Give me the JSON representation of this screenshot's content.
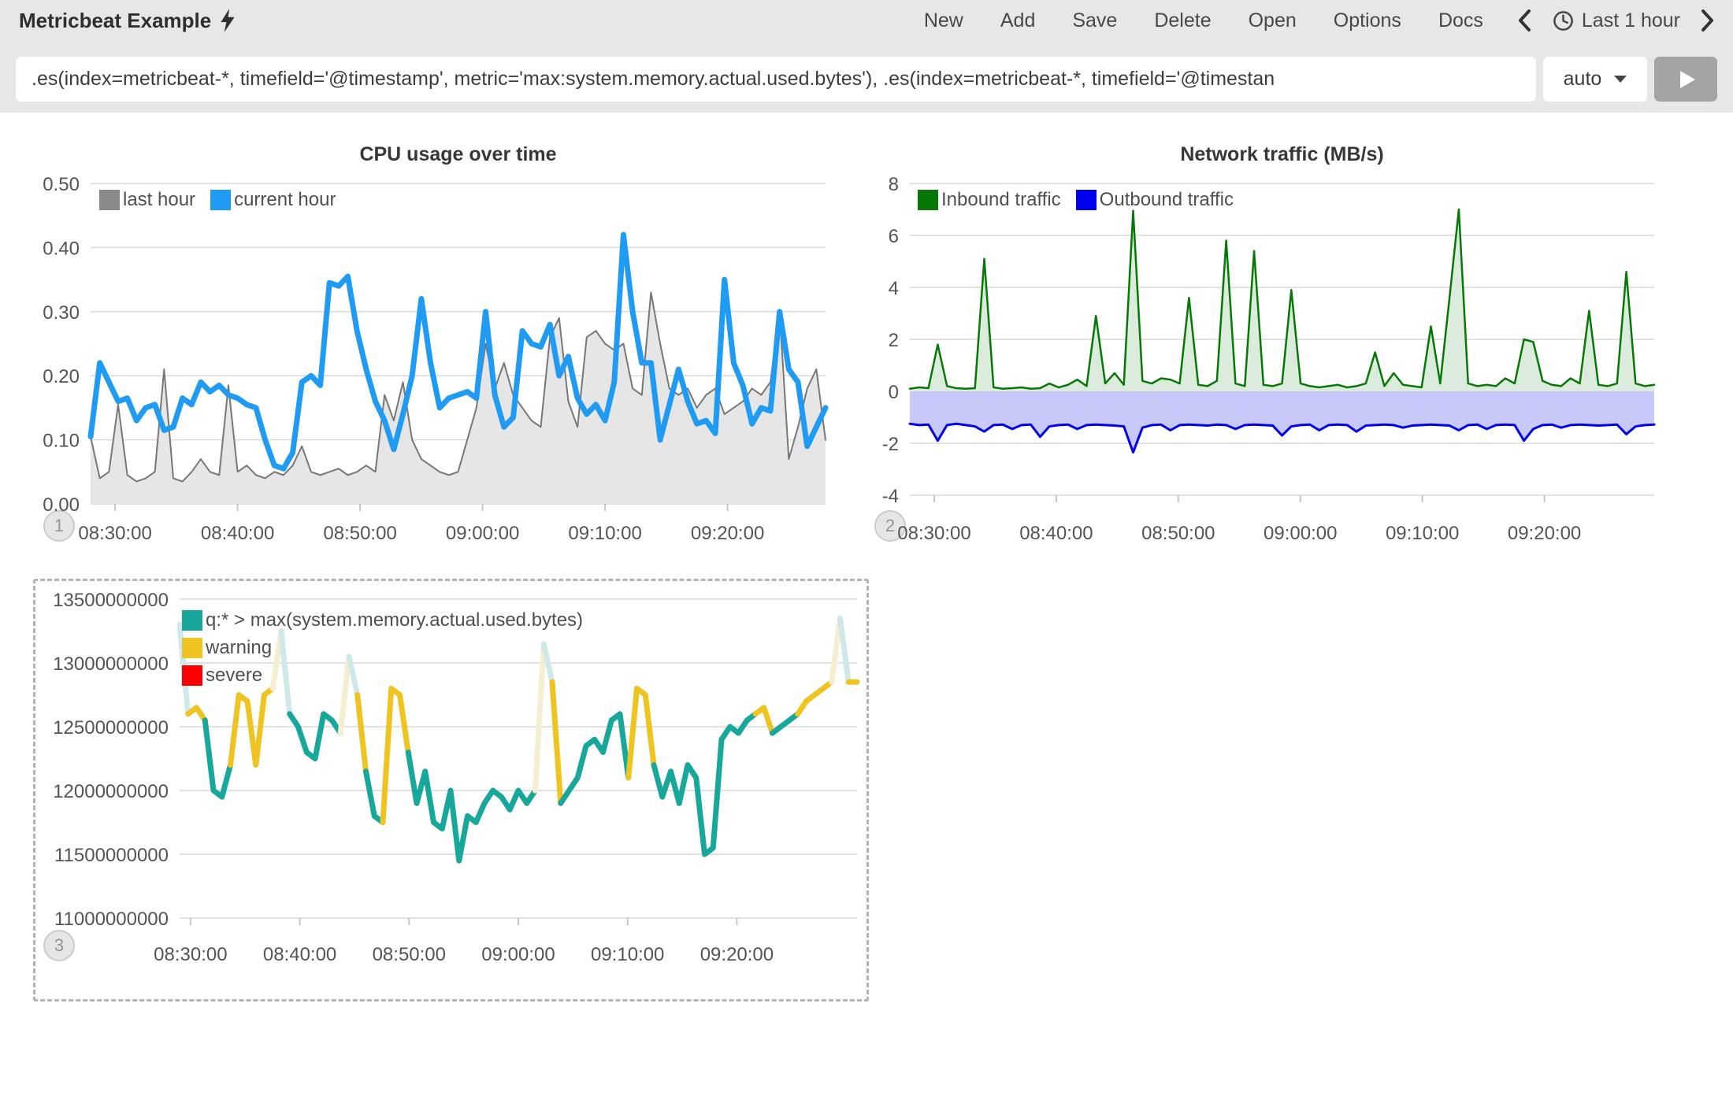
{
  "app": {
    "title": "Metricbeat Example",
    "title_icon": "lightning-bolt-icon"
  },
  "toolbar": {
    "items": [
      "New",
      "Add",
      "Save",
      "Delete",
      "Open",
      "Options",
      "Docs"
    ],
    "time_label": "Last 1 hour"
  },
  "query": {
    "value": ".es(index=metricbeat-*, timefield='@timestamp', metric='max:system.memory.actual.used.bytes'), .es(index=metricbeat-*, timefield='@timestan",
    "interval_value": "auto"
  },
  "colors": {
    "header_bg": "#e7e7e7",
    "cpu_last_hour": "#8a8a8a",
    "cpu_current_hour": "#1f9bf4",
    "net_inbound": "#077807",
    "net_outbound": "#0000ee",
    "memory_line": "#17a79b",
    "memory_warning": "#f0c420",
    "memory_severe": "#ff0000"
  },
  "time_axis_note": "t = minutes since 08:28:00",
  "chart_data": [
    {
      "id": "cpu-usage",
      "type": "line",
      "title": "CPU usage over time",
      "panel_badge": "1",
      "legend": [
        {
          "label": "last hour",
          "color": "#8a8a8a"
        },
        {
          "label": "current hour",
          "color": "#1f9bf4"
        }
      ],
      "xlim_minutes": [
        0,
        60
      ],
      "ylim": [
        0,
        0.5
      ],
      "y_ticks": [
        {
          "v": 0.5,
          "label": "0.50"
        },
        {
          "v": 0.4,
          "label": "0.40"
        },
        {
          "v": 0.3,
          "label": "0.30"
        },
        {
          "v": 0.2,
          "label": "0.20"
        },
        {
          "v": 0.1,
          "label": "0.10"
        },
        {
          "v": 0.0,
          "label": "0.00"
        }
      ],
      "x_ticks": [
        {
          "t": 2,
          "label": "08:30:00"
        },
        {
          "t": 12,
          "label": "08:40:00"
        },
        {
          "t": 22,
          "label": "08:50:00"
        },
        {
          "t": 32,
          "label": "09:00:00"
        },
        {
          "t": 42,
          "label": "09:10:00"
        },
        {
          "t": 52,
          "label": "09:20:00"
        }
      ],
      "series": [
        {
          "name": "last hour",
          "color": "#777777",
          "width": 2,
          "fill": "#e6e6e6",
          "t_start": 0,
          "t_step": 0.75,
          "values": [
            0.105,
            0.04,
            0.05,
            0.155,
            0.045,
            0.035,
            0.04,
            0.05,
            0.21,
            0.04,
            0.035,
            0.05,
            0.07,
            0.05,
            0.045,
            0.185,
            0.05,
            0.06,
            0.045,
            0.04,
            0.05,
            0.045,
            0.06,
            0.09,
            0.05,
            0.045,
            0.05,
            0.055,
            0.045,
            0.05,
            0.06,
            0.05,
            0.17,
            0.13,
            0.19,
            0.1,
            0.07,
            0.06,
            0.05,
            0.045,
            0.05,
            0.1,
            0.15,
            0.25,
            0.18,
            0.22,
            0.17,
            0.15,
            0.13,
            0.12,
            0.26,
            0.29,
            0.16,
            0.12,
            0.26,
            0.27,
            0.25,
            0.24,
            0.25,
            0.18,
            0.17,
            0.33,
            0.25,
            0.18,
            0.17,
            0.18,
            0.15,
            0.17,
            0.18,
            0.14,
            0.15,
            0.16,
            0.18,
            0.17,
            0.19,
            0.3,
            0.07,
            0.12,
            0.18,
            0.21,
            0.1
          ]
        },
        {
          "name": "current hour",
          "color": "#1f9bf4",
          "width": 7,
          "t_start": 0,
          "t_step": 0.75,
          "values": [
            0.105,
            0.22,
            0.19,
            0.16,
            0.165,
            0.13,
            0.15,
            0.155,
            0.115,
            0.12,
            0.165,
            0.155,
            0.19,
            0.175,
            0.185,
            0.17,
            0.165,
            0.155,
            0.15,
            0.1,
            0.06,
            0.055,
            0.08,
            0.19,
            0.2,
            0.185,
            0.345,
            0.34,
            0.355,
            0.27,
            0.21,
            0.16,
            0.13,
            0.085,
            0.14,
            0.2,
            0.32,
            0.22,
            0.15,
            0.165,
            0.17,
            0.175,
            0.165,
            0.3,
            0.17,
            0.12,
            0.135,
            0.27,
            0.25,
            0.245,
            0.28,
            0.2,
            0.23,
            0.165,
            0.14,
            0.155,
            0.13,
            0.19,
            0.42,
            0.3,
            0.22,
            0.22,
            0.1,
            0.155,
            0.21,
            0.16,
            0.125,
            0.13,
            0.11,
            0.35,
            0.22,
            0.185,
            0.125,
            0.15,
            0.145,
            0.3,
            0.21,
            0.19,
            0.09,
            0.12,
            0.15
          ]
        }
      ]
    },
    {
      "id": "network-traffic",
      "type": "area",
      "title": "Network traffic (MB/s)",
      "panel_badge": "2",
      "legend": [
        {
          "label": "Inbound traffic",
          "color": "#077807"
        },
        {
          "label": "Outbound traffic",
          "color": "#0000ee"
        }
      ],
      "xlim_minutes": [
        0,
        61
      ],
      "ylim": [
        -4,
        8
      ],
      "y_ticks": [
        {
          "v": 8,
          "label": "8"
        },
        {
          "v": 6,
          "label": "6"
        },
        {
          "v": 4,
          "label": "4"
        },
        {
          "v": 2,
          "label": "2"
        },
        {
          "v": 0,
          "label": "0"
        },
        {
          "v": -2,
          "label": "-2"
        },
        {
          "v": -4,
          "label": "-4"
        }
      ],
      "x_ticks": [
        {
          "t": 2,
          "label": "08:30:00"
        },
        {
          "t": 12,
          "label": "08:40:00"
        },
        {
          "t": 22,
          "label": "08:50:00"
        },
        {
          "t": 32,
          "label": "09:00:00"
        },
        {
          "t": 42,
          "label": "09:10:00"
        },
        {
          "t": 52,
          "label": "09:20:00"
        }
      ],
      "series": [
        {
          "name": "Inbound traffic",
          "color": "#077807",
          "width": 2.5,
          "fill": "#dcecdc",
          "t_start": 0,
          "t_step": 0.7625,
          "values": [
            0.1,
            0.15,
            0.12,
            1.8,
            0.2,
            0.12,
            0.1,
            0.12,
            5.1,
            0.15,
            0.1,
            0.12,
            0.15,
            0.1,
            0.12,
            0.3,
            0.15,
            0.25,
            0.45,
            0.2,
            2.9,
            0.3,
            0.7,
            0.25,
            6.95,
            0.4,
            0.3,
            0.5,
            0.45,
            0.3,
            3.6,
            0.25,
            0.2,
            0.4,
            5.8,
            0.3,
            0.2,
            5.4,
            0.25,
            0.2,
            0.3,
            3.9,
            0.3,
            0.2,
            0.15,
            0.2,
            0.25,
            0.15,
            0.2,
            0.3,
            1.5,
            0.2,
            0.7,
            0.25,
            0.2,
            0.15,
            2.5,
            0.3,
            3.6,
            7.0,
            0.3,
            0.2,
            0.25,
            0.2,
            0.5,
            0.3,
            2.0,
            1.9,
            0.4,
            0.25,
            0.2,
            0.5,
            0.3,
            3.1,
            0.25,
            0.2,
            0.3,
            4.6,
            0.3,
            0.2,
            0.25
          ]
        },
        {
          "name": "Outbound traffic",
          "color": "#0000ee",
          "width": 3,
          "fill": "#c9c9f9",
          "t_start": 0,
          "t_step": 0.7625,
          "values": [
            -1.25,
            -1.3,
            -1.28,
            -1.9,
            -1.3,
            -1.25,
            -1.3,
            -1.35,
            -1.55,
            -1.3,
            -1.28,
            -1.45,
            -1.3,
            -1.28,
            -1.75,
            -1.35,
            -1.3,
            -1.28,
            -1.45,
            -1.3,
            -1.28,
            -1.3,
            -1.32,
            -1.35,
            -2.35,
            -1.4,
            -1.3,
            -1.28,
            -1.5,
            -1.3,
            -1.28,
            -1.3,
            -1.32,
            -1.28,
            -1.3,
            -1.45,
            -1.3,
            -1.28,
            -1.3,
            -1.32,
            -1.7,
            -1.35,
            -1.3,
            -1.28,
            -1.5,
            -1.3,
            -1.28,
            -1.3,
            -1.55,
            -1.32,
            -1.3,
            -1.28,
            -1.3,
            -1.4,
            -1.32,
            -1.3,
            -1.28,
            -1.3,
            -1.32,
            -1.5,
            -1.3,
            -1.28,
            -1.45,
            -1.3,
            -1.28,
            -1.3,
            -1.9,
            -1.45,
            -1.3,
            -1.28,
            -1.4,
            -1.3,
            -1.28,
            -1.3,
            -1.32,
            -1.3,
            -1.28,
            -1.65,
            -1.35,
            -1.3,
            -1.28
          ]
        }
      ]
    },
    {
      "id": "memory-used",
      "type": "line",
      "title": "",
      "panel_badge": "3",
      "legend": [
        {
          "label": "q:* > max(system.memory.actual.used.bytes)",
          "color": "#17a79b"
        },
        {
          "label": "warning",
          "color": "#f0c420"
        },
        {
          "label": "severe",
          "color": "#ff0000"
        }
      ],
      "xlim_minutes": [
        1,
        63
      ],
      "ylim": [
        11000000000,
        13500000000
      ],
      "y_ticks": [
        {
          "v": 13500000000,
          "label": "13500000000"
        },
        {
          "v": 13000000000,
          "label": "13000000000"
        },
        {
          "v": 12500000000,
          "label": "12500000000"
        },
        {
          "v": 12000000000,
          "label": "12000000000"
        },
        {
          "v": 11500000000,
          "label": "11500000000"
        },
        {
          "v": 11000000000,
          "label": "11000000000"
        }
      ],
      "x_ticks": [
        {
          "t": 2,
          "label": "08:30:00"
        },
        {
          "t": 12,
          "label": "08:40:00"
        },
        {
          "t": 22,
          "label": "08:50:00"
        },
        {
          "t": 32,
          "label": "09:00:00"
        },
        {
          "t": 42,
          "label": "09:10:00"
        },
        {
          "t": 52,
          "label": "09:20:00"
        }
      ],
      "series": [
        {
          "name": "q:* > max(system.memory.actual.used.bytes)",
          "color": "#17a79b",
          "width": 7,
          "t_start": 1,
          "t_step": 0.775,
          "color_rules": {
            "warning_value": 12620000000,
            "severe_value": 12950000000,
            "warning_color": "#f0c420",
            "pale_up": "#f5eed0",
            "pale_down": "#cfe8e9"
          },
          "values": [
            13300000000,
            12600000000,
            12650000000,
            12550000000,
            12000000000,
            11950000000,
            12200000000,
            12750000000,
            12700000000,
            12200000000,
            12750000000,
            12800000000,
            13250000000,
            12600000000,
            12500000000,
            12300000000,
            12250000000,
            12600000000,
            12550000000,
            12450000000,
            13050000000,
            12750000000,
            12150000000,
            11800000000,
            11750000000,
            12800000000,
            12750000000,
            12300000000,
            11900000000,
            12150000000,
            11750000000,
            11700000000,
            12000000000,
            11450000000,
            11800000000,
            11750000000,
            11900000000,
            12000000000,
            11950000000,
            11850000000,
            12000000000,
            11900000000,
            12000000000,
            13150000000,
            12850000000,
            11900000000,
            12000000000,
            12100000000,
            12350000000,
            12400000000,
            12300000000,
            12550000000,
            12600000000,
            12100000000,
            12800000000,
            12750000000,
            12200000000,
            11950000000,
            12150000000,
            11900000000,
            12200000000,
            12100000000,
            11500000000,
            11550000000,
            12400000000,
            12500000000,
            12450000000,
            12550000000,
            12600000000,
            12650000000,
            12450000000,
            12500000000,
            12550000000,
            12600000000,
            12700000000,
            12750000000,
            12800000000,
            12850000000,
            13350000000,
            12850000000,
            12850000000
          ]
        }
      ]
    }
  ]
}
